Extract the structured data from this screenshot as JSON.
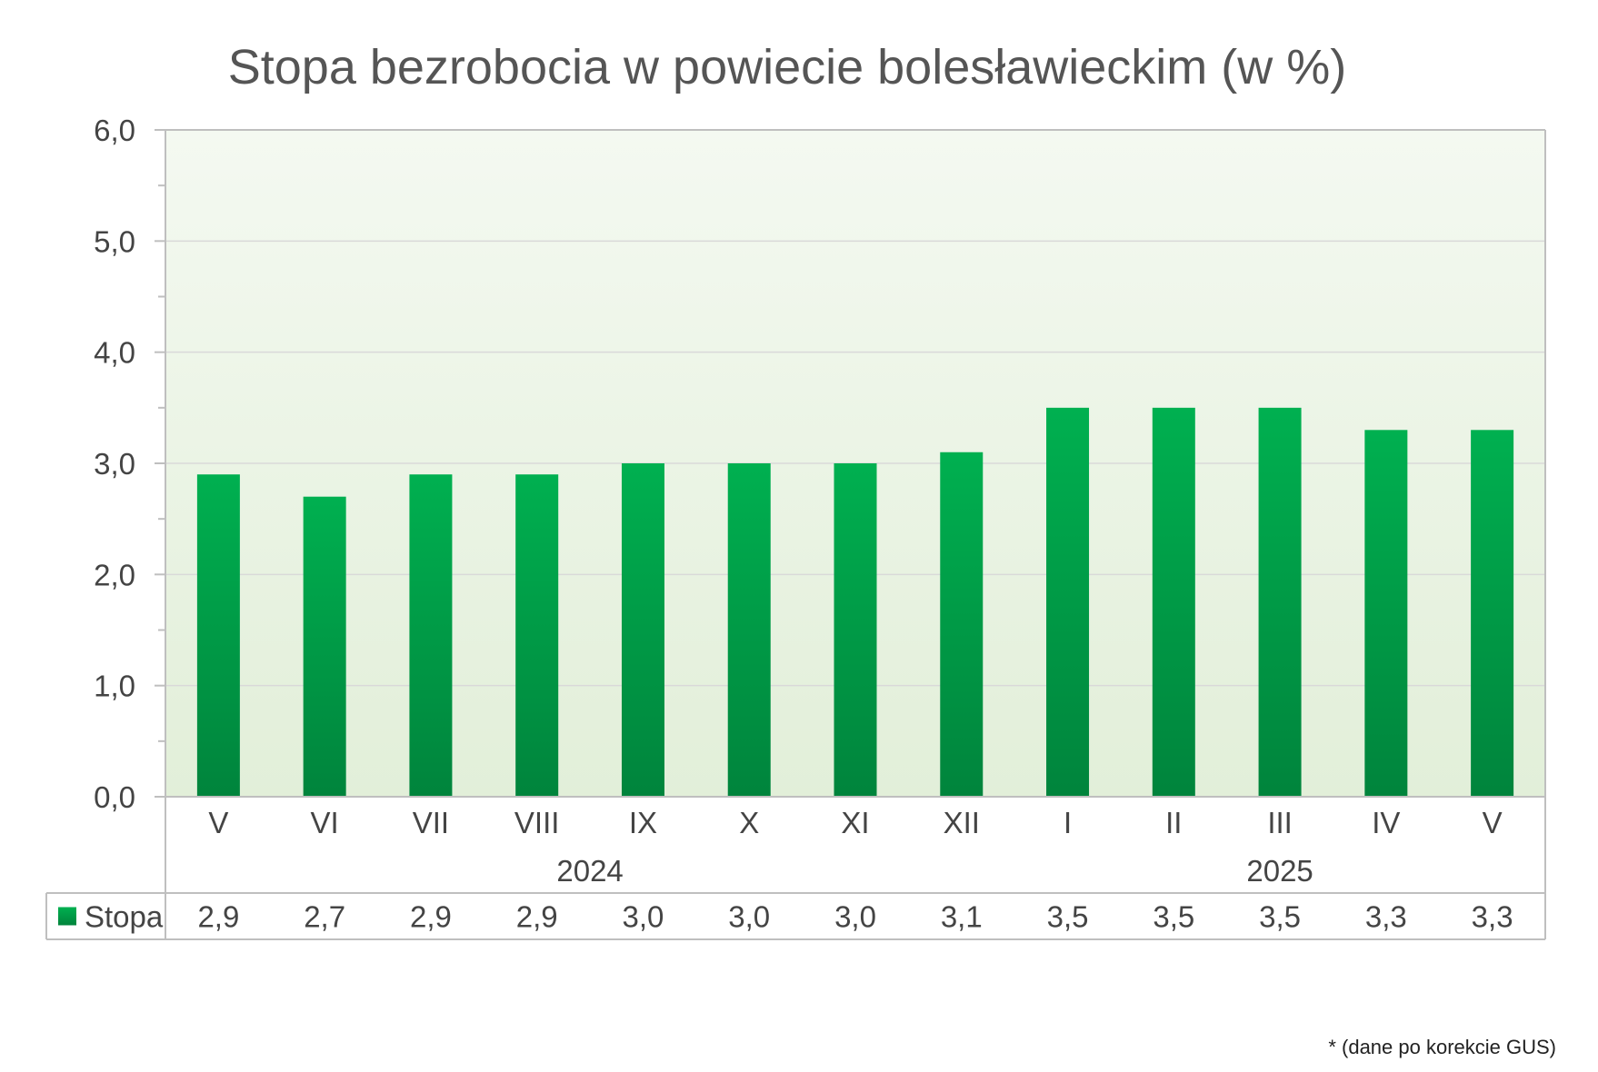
{
  "chart_data": {
    "type": "bar",
    "title": "Stopa bezrobocia w powiecie bolesławieckim (w %)",
    "categories": [
      "V",
      "VI",
      "VII",
      "VIII",
      "IX",
      "X",
      "XI",
      "XII",
      "I",
      "II",
      "III",
      "IV",
      "V"
    ],
    "category_groups": [
      {
        "label": "2024",
        "count": 8
      },
      {
        "label": "2025",
        "count": 5
      }
    ],
    "series": [
      {
        "name": "Stopa",
        "values": [
          2.9,
          2.7,
          2.9,
          2.9,
          3.0,
          3.0,
          3.0,
          3.1,
          3.5,
          3.5,
          3.5,
          3.3,
          3.3
        ],
        "value_labels": [
          "2,9",
          "2,7",
          "2,9",
          "2,9",
          "3,0",
          "3,0",
          "3,0",
          "3,1",
          "3,5",
          "3,5",
          "3,5",
          "3,3",
          "3,3"
        ],
        "color": "#00a84f"
      }
    ],
    "ylim": [
      0,
      6
    ],
    "y_ticks": [
      "0,0",
      "1,0",
      "2,0",
      "3,0",
      "4,0",
      "5,0",
      "6,0"
    ],
    "grid": true,
    "legend": "data-table",
    "colors": {
      "bar_top": "#00b050",
      "bar_bottom": "#00843c",
      "plot_bg_top": "#f4f9f1",
      "plot_bg_bottom": "#e2efd9",
      "grid": "#d9d9d9",
      "axis": "#bfbfbf",
      "text": "#444444"
    }
  },
  "footnote": "* (dane po korekcie GUS)"
}
